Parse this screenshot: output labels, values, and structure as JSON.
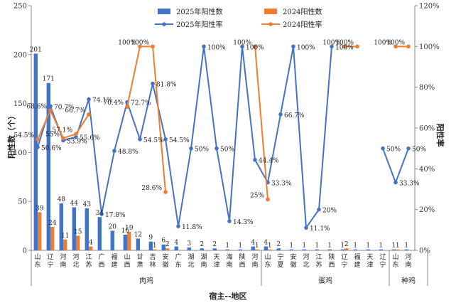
{
  "chart_data": {
    "type": "bar",
    "title": "",
    "xlabel": "宿主--地区",
    "ylabel": "阳性数（个）",
    "y2label": "阳性率",
    "ylim": [
      0,
      250
    ],
    "y2lim": [
      0,
      120
    ],
    "yticks": [
      "0",
      "50",
      "100",
      "150",
      "200",
      "250"
    ],
    "y2ticks": [
      "0%",
      "20%",
      "40%",
      "60%",
      "80%",
      "100%",
      "120%"
    ],
    "legend_placement": "top-center",
    "grid": false,
    "colors": {
      "bar2025": "#4472C4",
      "bar2024": "#ED7D31",
      "line2025": "#4472C4",
      "line2024": "#ED7D31"
    },
    "groups": [
      {
        "name": "肉鸡",
        "start": 0,
        "end": 17
      },
      {
        "name": "蛋鸡",
        "start": 18,
        "end": 27
      },
      {
        "name": "种鸡",
        "start": 28,
        "end": 30
      }
    ],
    "categories": [
      "山东",
      "辽宁",
      "河南",
      "河北",
      "江苏",
      "广西",
      "福建",
      "山西",
      "甘肃",
      "吉林",
      "安徽",
      "广东",
      "湖北",
      "湖南",
      "天津",
      "海南",
      "陕西",
      "河南",
      "山东",
      "宁夏",
      "安徽",
      "河北",
      "江苏",
      "陕西",
      "辽宁",
      "福建",
      "天津",
      "辽宁",
      "山东",
      "河南"
    ],
    "series": [
      {
        "name": "2025年阳性数",
        "kind": "bar",
        "values": [
          201,
          171,
          48,
          44,
          43,
          34,
          20,
          16,
          12,
          9,
          6,
          4,
          3,
          2,
          2,
          1,
          1,
          4,
          4,
          2,
          1,
          1,
          1,
          1,
          1,
          1,
          1,
          1,
          1,
          1
        ],
        "labels": [
          "201",
          "171",
          "48",
          "44",
          "43",
          "34",
          "20",
          "16",
          "12",
          "9",
          "6",
          "4",
          "3",
          "2",
          "2",
          "1",
          "1",
          "4",
          "4",
          "2",
          "1",
          "1",
          "1",
          "1",
          "1",
          "1",
          "1",
          "1",
          "1",
          "1"
        ]
      },
      {
        "name": "2024阳性数",
        "kind": "bar",
        "values": [
          39,
          24,
          11,
          15,
          4,
          null,
          null,
          19,
          null,
          1,
          2,
          null,
          null,
          null,
          null,
          null,
          null,
          1,
          1,
          null,
          null,
          null,
          null,
          null,
          2,
          null,
          null,
          null,
          1,
          null
        ],
        "labels": [
          "39",
          "24",
          "11",
          "15",
          "4",
          "",
          "",
          "19",
          "",
          "1",
          "2",
          "",
          "",
          "",
          "",
          "",
          "",
          "1",
          "1",
          "",
          "",
          "",
          "",
          "",
          "2",
          "",
          "",
          "",
          "1",
          ""
        ]
      },
      {
        "name": "2025年阳性率",
        "kind": "line",
        "values": [
          50.6,
          70.7,
          53.9,
          55.6,
          74.1,
          17.8,
          48.8,
          72.7,
          54.5,
          81.8,
          54.5,
          11.8,
          50,
          100,
          50,
          14.3,
          100,
          44.4,
          33.3,
          66.7,
          100,
          11.1,
          20,
          100,
          null,
          null,
          null,
          50,
          33.3,
          50
        ],
        "labels": [
          "50.6%",
          "70.7%",
          "53.9%",
          "55.6%",
          "74.1%",
          "17.8%",
          "48.8%",
          "72.7%",
          "54.5%",
          "81.8%",
          "54.5%",
          "11.8%",
          "50%",
          "100%",
          "50%",
          "14.3%",
          "100%",
          "44.4%",
          "33.3%",
          "66.7%",
          "100%",
          "11.1%",
          "20%",
          "100%",
          "",
          "",
          "",
          "50%",
          "33.3%",
          "50%"
        ]
      },
      {
        "name": "2024阳性率",
        "kind": "line",
        "values": [
          54.5,
          68.6,
          55,
          57.1,
          66.7,
          null,
          null,
          70.4,
          100,
          100,
          28.6,
          null,
          null,
          null,
          null,
          null,
          null,
          100,
          25,
          null,
          null,
          null,
          null,
          null,
          100,
          100,
          null,
          null,
          100,
          100
        ],
        "labels": [
          "54.5%",
          "68.6%",
          "55%",
          "57.1%",
          "66.7%",
          "",
          "",
          "70.4%",
          "100%",
          "100%",
          "28.6%",
          "",
          "",
          "",
          "",
          "",
          "",
          "100%",
          "25%",
          "",
          "",
          "",
          "",
          "",
          "100%",
          "100%",
          "",
          "",
          "100%",
          "100%"
        ]
      }
    ]
  }
}
